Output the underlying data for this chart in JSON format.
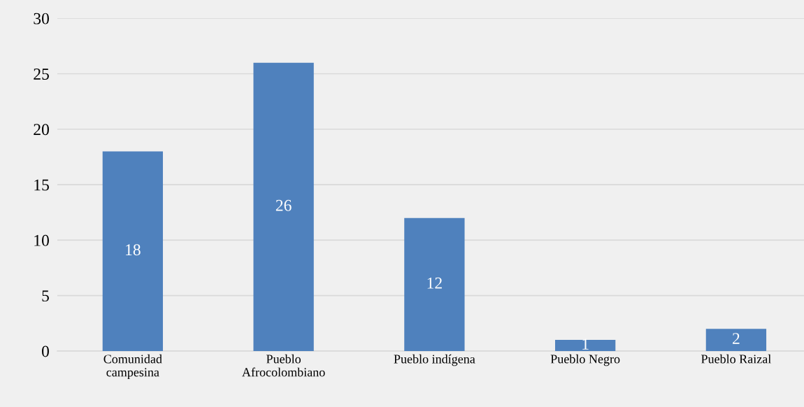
{
  "chart_data": {
    "type": "bar",
    "categories": [
      "Comunidad\ncampesina",
      "Pueblo\nAfrocolombiano",
      "Pueblo indígena",
      "Pueblo Negro",
      "Pueblo Raizal"
    ],
    "values": [
      18,
      26,
      12,
      1,
      2
    ],
    "color": "#4f81bd",
    "ylim": [
      0,
      30
    ],
    "yticks": [
      0,
      5,
      10,
      15,
      20,
      25,
      30
    ],
    "grid": "y",
    "data_labels": true,
    "legend": false
  }
}
